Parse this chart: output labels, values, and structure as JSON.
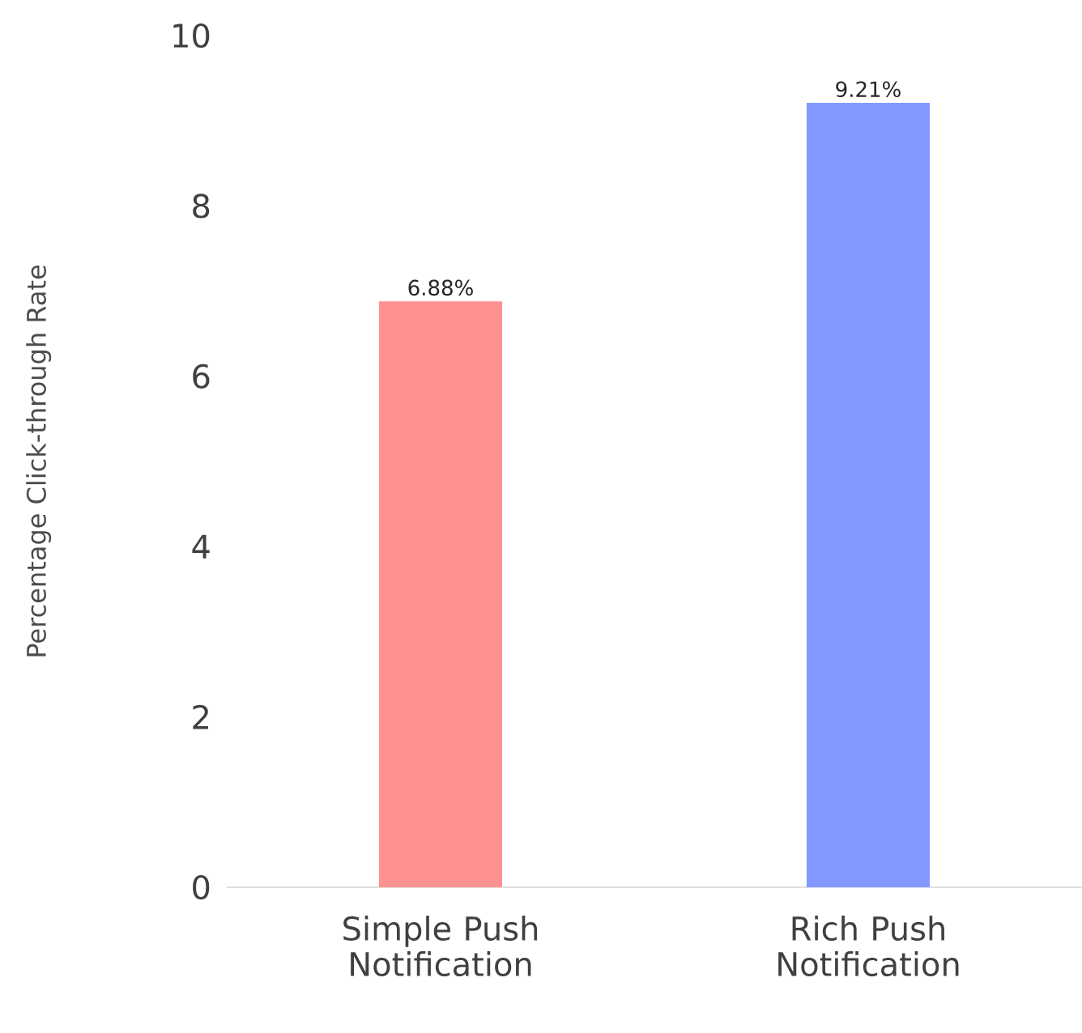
{
  "chart_data": {
    "type": "bar",
    "ylabel": "Percentage Click-through Rate",
    "categories": [
      "Simple Push Notification",
      "Rich Push Notification"
    ],
    "values": [
      6.88,
      9.21
    ],
    "value_labels": [
      "6.88%",
      "9.21%"
    ],
    "colors": [
      "#ff9190",
      "#8199ff"
    ],
    "ylim": [
      0,
      10
    ],
    "yticks": [
      0,
      2,
      4,
      6,
      8,
      10
    ],
    "grid": false
  }
}
